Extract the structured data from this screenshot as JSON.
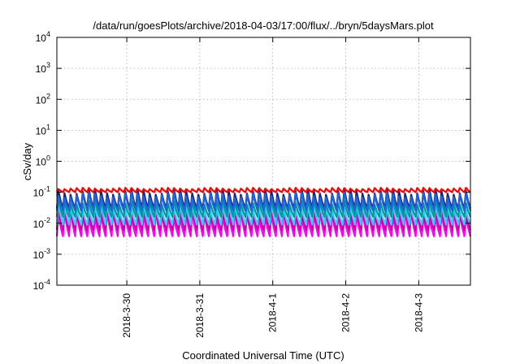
{
  "chart_data": {
    "type": "line",
    "title": "/data/run/goesPlots/archive/2018-04-03/17:00/flux/../bryn/5daysMars.plot",
    "xlabel": "Coordinated Universal Time (UTC)",
    "ylabel": "cSv/day",
    "yscale": "log",
    "ylim": [
      0.0001,
      10000
    ],
    "y_ticks": [
      {
        "exp": -4,
        "label_base": "10",
        "label_exp": "-4"
      },
      {
        "exp": -3,
        "label_base": "10",
        "label_exp": "-3"
      },
      {
        "exp": -2,
        "label_base": "10",
        "label_exp": "-2"
      },
      {
        "exp": -1,
        "label_base": "10",
        "label_exp": "-1"
      },
      {
        "exp": 0,
        "label_base": "10",
        "label_exp": "0"
      },
      {
        "exp": 1,
        "label_base": "10",
        "label_exp": "1"
      },
      {
        "exp": 2,
        "label_base": "10",
        "label_exp": "2"
      },
      {
        "exp": 3,
        "label_base": "10",
        "label_exp": "3"
      },
      {
        "exp": 4,
        "label_base": "10",
        "label_exp": "4"
      }
    ],
    "xlim": [
      "2018-03-29 01:00",
      "2018-04-03 17:00"
    ],
    "x_ticks": [
      {
        "date": "2018-03-30 00:00",
        "label": "2018-3-30"
      },
      {
        "date": "2018-03-31 00:00",
        "label": "2018-3-31"
      },
      {
        "date": "2018-04-01 00:00",
        "label": "2018-4-1"
      },
      {
        "date": "2018-04-02 00:00",
        "label": "2018-4-2"
      },
      {
        "date": "2018-04-03 00:00",
        "label": "2018-4-3"
      }
    ],
    "grid": true,
    "pattern": "sawtooth with period of about 2 hours: sharp rise to peak then decay to trough",
    "sawtooth_period_hours": 2.0,
    "series": [
      {
        "color": "#ff00ff",
        "peak": 0.025,
        "trough": 0.0038
      },
      {
        "color": "#cc0099",
        "peak": 0.03,
        "trough": 0.006
      },
      {
        "color": "#33ccff",
        "peak": 0.042,
        "trough": 0.009
      },
      {
        "color": "#009999",
        "peak": 0.06,
        "trough": 0.016
      },
      {
        "color": "#1a237e",
        "peak": 0.13,
        "trough": 0.03
      },
      {
        "color": "#1e64dc",
        "peak": 0.1,
        "trough": 0.025
      },
      {
        "color": "#ff0000",
        "peak": 0.14,
        "trough": 0.1
      }
    ]
  }
}
